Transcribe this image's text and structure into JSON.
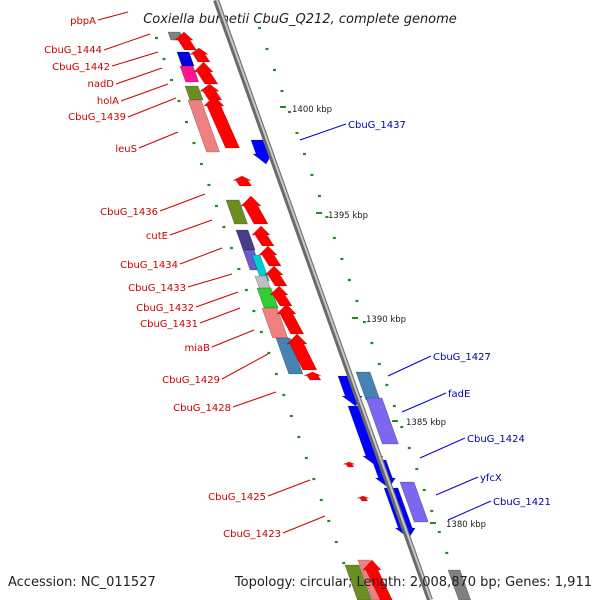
{
  "title": "Coxiella burnetii CbuG_Q212, complete genome",
  "footer": {
    "accession": "Accession: NC_011527",
    "topology": "Topology: circular; Length: 2,008,870 bp; Genes: 1,911"
  },
  "colors": {
    "forward_label": "#cc0000",
    "reverse_label": "#0000aa",
    "forward_arrow": "#ff0000",
    "reverse_arrow": "#0000ff",
    "backbone": "#8c8c8c",
    "tick": "#228b22"
  },
  "kbp_labels": [
    "1400 kbp",
    "1395 kbp",
    "1390 kbp",
    "1385 kbp",
    "1380 kbp"
  ],
  "left_labels": [
    "pbpA",
    "CbuG_1444",
    "CbuG_1442",
    "nadD",
    "holA",
    "CbuG_1439",
    "leuS",
    "CbuG_1436",
    "cutE",
    "CbuG_1434",
    "CbuG_1433",
    "CbuG_1432",
    "CbuG_1431",
    "miaB",
    "CbuG_1429",
    "CbuG_1428",
    "CbuG_1425",
    "CbuG_1423"
  ],
  "right_labels": [
    "CbuG_1437",
    "CbuG_1427",
    "fadE",
    "CbuG_1424",
    "yfcX",
    "CbuG_1421"
  ]
}
